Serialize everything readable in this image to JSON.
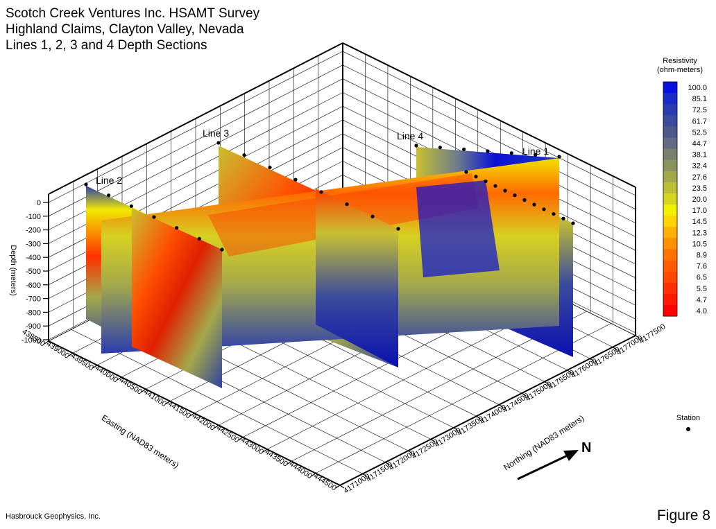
{
  "title_lines": [
    "Scotch Creek Ventures Inc. HSAMT Survey",
    "Highland Claims, Clayton Valley, Nevada",
    "Lines 1, 2, 3 and 4 Depth Sections"
  ],
  "credit": "Hasbrouck Geophysics, Inc.",
  "figure_label": "Figure 8",
  "north_label": "N",
  "legend": {
    "title_line1": "Resistivity",
    "title_line2": "(ohm-meters)",
    "station_label": "Station"
  },
  "colors": {
    "low": "#ff0000",
    "mid": "#ffff00",
    "high": "#0000ff"
  },
  "chart_data": {
    "type": "heatmap",
    "subtype": "3d-fence-diagram",
    "colorbar_ticks": [
      "100.0",
      "85.1",
      "72.5",
      "61.7",
      "52.5",
      "44.7",
      "38.1",
      "32.4",
      "27.6",
      "23.5",
      "20.0",
      "17.0",
      "14.5",
      "12.3",
      "10.5",
      "8.9",
      "7.6",
      "6.5",
      "5.5",
      "4.7",
      "4.0"
    ],
    "colorbar_colors": [
      "#0a10e0",
      "#1a2cc8",
      "#2a3cb0",
      "#3c4c9c",
      "#4e5a8e",
      "#626a84",
      "#78806e",
      "#8c945e",
      "#a4a84a",
      "#bcbe36",
      "#d6d620",
      "#f2f000",
      "#ffd400",
      "#ffb000",
      "#ff9000",
      "#ff7400",
      "#ff5c00",
      "#ff4800",
      "#ff3000",
      "#ff1a00",
      "#ff0000"
    ],
    "depth_axis": {
      "label": "Depth (meters)",
      "ticks": [
        "0",
        "-100",
        "-200",
        "-300",
        "-400",
        "-500",
        "-600",
        "-700",
        "-800",
        "-900",
        "-1000"
      ]
    },
    "easting_axis": {
      "label": "Easting (NAD83 meters)",
      "ticks": [
        "438500",
        "439000",
        "439500",
        "440000",
        "440500",
        "441000",
        "441500",
        "442000",
        "442500",
        "443000",
        "443500",
        "444000",
        "444500"
      ]
    },
    "northing_axis": {
      "label": "Northing (NAD83 meters)",
      "ticks": [
        "4171000",
        "4171500",
        "4172000",
        "4172500",
        "4173000",
        "4173500",
        "4174000",
        "4174500",
        "4175000",
        "4175500",
        "4176000",
        "4176500",
        "4177000",
        "4177500"
      ]
    },
    "lines": [
      {
        "name": "Line 1",
        "stations_shown": 12
      },
      {
        "name": "Line 2",
        "stations_shown": 7
      },
      {
        "name": "Line 3",
        "stations_shown": 8
      },
      {
        "name": "Line 4",
        "stations_shown": 7
      }
    ]
  }
}
